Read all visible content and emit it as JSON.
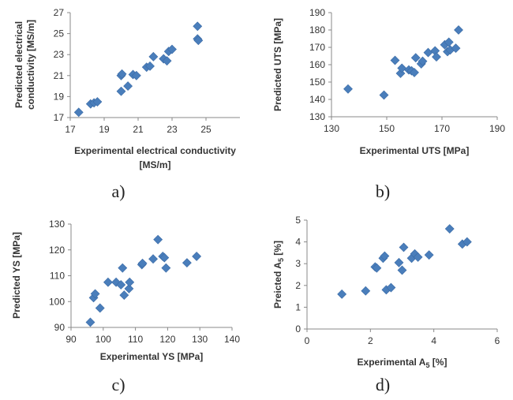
{
  "chart_data": [
    {
      "type": "scatter",
      "panel_label": "a)",
      "xlabel": [
        "Experimental electrical conductivity",
        "[MS/m]"
      ],
      "ylabel": [
        "Predicted electrical",
        "conductivity [MS/m]"
      ],
      "xlim": [
        17,
        27
      ],
      "ylim": [
        17,
        27
      ],
      "xticks": [
        17,
        19,
        21,
        23,
        25
      ],
      "yticks": [
        17,
        19,
        21,
        23,
        25,
        27
      ],
      "grid": false,
      "marker_color": "#4a7ebb",
      "points": [
        [
          17.5,
          17.5
        ],
        [
          18.2,
          18.3
        ],
        [
          18.4,
          18.4
        ],
        [
          18.6,
          18.5
        ],
        [
          20.0,
          19.5
        ],
        [
          20.0,
          21.0
        ],
        [
          20.05,
          21.15
        ],
        [
          20.4,
          20.0
        ],
        [
          20.7,
          21.1
        ],
        [
          20.9,
          21.0
        ],
        [
          21.5,
          21.8
        ],
        [
          21.7,
          21.9
        ],
        [
          21.9,
          22.8
        ],
        [
          22.5,
          22.6
        ],
        [
          22.7,
          22.4
        ],
        [
          22.8,
          23.3
        ],
        [
          23.0,
          23.5
        ],
        [
          24.5,
          24.5
        ],
        [
          24.5,
          25.7
        ],
        [
          24.55,
          24.35
        ]
      ]
    },
    {
      "type": "scatter",
      "panel_label": "b)",
      "xlabel": [
        "Experimental UTS [MPa]"
      ],
      "ylabel": [
        "Predicted UTS [MPa]"
      ],
      "xlim": [
        130,
        190
      ],
      "ylim": [
        130,
        190
      ],
      "xticks": [
        130,
        150,
        170,
        190
      ],
      "yticks": [
        130,
        140,
        150,
        160,
        170,
        180,
        190
      ],
      "grid": false,
      "marker_color": "#4a7ebb",
      "points": [
        [
          136,
          146
        ],
        [
          149,
          142.5
        ],
        [
          153,
          162.5
        ],
        [
          155,
          155
        ],
        [
          155.5,
          158
        ],
        [
          158,
          157
        ],
        [
          159,
          156.5
        ],
        [
          160,
          155.5
        ],
        [
          160.5,
          164
        ],
        [
          162.5,
          160.5
        ],
        [
          163,
          162
        ],
        [
          165,
          167
        ],
        [
          167.5,
          168
        ],
        [
          168,
          164.5
        ],
        [
          171,
          171.5
        ],
        [
          172,
          167.5
        ],
        [
          172.5,
          173
        ],
        [
          173,
          168.5
        ],
        [
          175,
          169.5
        ],
        [
          176,
          180
        ]
      ]
    },
    {
      "type": "scatter",
      "panel_label": "c)",
      "xlabel": [
        "Experimental YS [MPa]"
      ],
      "ylabel": [
        "Predicted YS [MPa]"
      ],
      "xlim": [
        90,
        140
      ],
      "ylim": [
        90,
        130
      ],
      "xticks": [
        90,
        100,
        110,
        120,
        130,
        140
      ],
      "yticks": [
        90,
        100,
        110,
        120,
        130
      ],
      "grid": false,
      "marker_color": "#4a7ebb",
      "points": [
        [
          96,
          92
        ],
        [
          97,
          101.5
        ],
        [
          97.5,
          103
        ],
        [
          99,
          97.5
        ],
        [
          101.5,
          107.5
        ],
        [
          104,
          107.5
        ],
        [
          105.5,
          106.5
        ],
        [
          106,
          113
        ],
        [
          106.5,
          102.5
        ],
        [
          108,
          105
        ],
        [
          108.2,
          107.5
        ],
        [
          112,
          114.3
        ],
        [
          112.2,
          114.8
        ],
        [
          115.5,
          116.5
        ],
        [
          117,
          124
        ],
        [
          118.5,
          117.5
        ],
        [
          119,
          117
        ],
        [
          119.5,
          113
        ],
        [
          126,
          115
        ],
        [
          129,
          117.5
        ]
      ]
    },
    {
      "type": "scatter",
      "panel_label": "d)",
      "xlabel": [
        "Experimental A",
        "5",
        " [%]"
      ],
      "ylabel": [
        "Preicted A",
        "5",
        " [%]"
      ],
      "xlim": [
        0,
        6
      ],
      "ylim": [
        0,
        5
      ],
      "xticks": [
        0,
        2,
        4,
        6
      ],
      "yticks": [
        0,
        1,
        2,
        3,
        4,
        5
      ],
      "grid": false,
      "marker_color": "#4a7ebb",
      "points": [
        [
          1.1,
          1.6
        ],
        [
          1.85,
          1.75
        ],
        [
          2.15,
          2.85
        ],
        [
          2.2,
          2.8
        ],
        [
          2.4,
          3.25
        ],
        [
          2.45,
          3.35
        ],
        [
          2.5,
          1.8
        ],
        [
          2.65,
          1.9
        ],
        [
          2.9,
          3.05
        ],
        [
          3.0,
          2.7
        ],
        [
          3.05,
          3.75
        ],
        [
          3.3,
          3.25
        ],
        [
          3.4,
          3.45
        ],
        [
          3.5,
          3.3
        ],
        [
          3.85,
          3.4
        ],
        [
          4.5,
          4.6
        ],
        [
          4.9,
          3.9
        ],
        [
          5.05,
          4.0
        ]
      ]
    }
  ]
}
